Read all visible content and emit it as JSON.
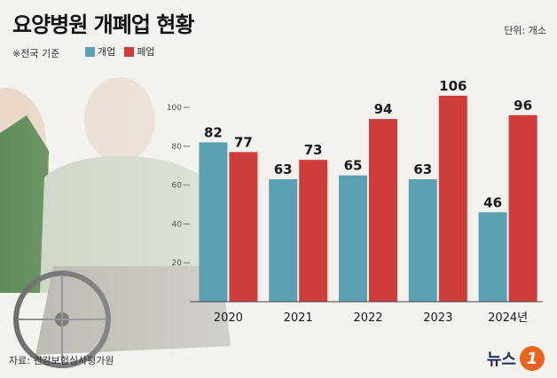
{
  "header": {
    "title": "요양병원 개폐업 현황",
    "unit": "단위: 개소",
    "note": "※전국 기준",
    "source": "자료: 건강보험심사평가원"
  },
  "logo": {
    "text": "뉴스",
    "badge": "1"
  },
  "colors": {
    "open": "#5b9fb3",
    "close": "#cf3c3c",
    "axis": "#555555"
  },
  "chart_data": {
    "type": "bar",
    "title": "요양병원 개폐업 현황",
    "xlabel": "",
    "ylabel": "",
    "ylim": [
      0,
      110
    ],
    "yticks": [
      20,
      40,
      60,
      80,
      100
    ],
    "categories": [
      "2020",
      "2021",
      "2022",
      "2023",
      "2024년"
    ],
    "series": [
      {
        "name": "개업",
        "color": "#5b9fb3",
        "values": [
          82,
          63,
          65,
          63,
          46
        ]
      },
      {
        "name": "폐업",
        "color": "#cf3c3c",
        "values": [
          77,
          73,
          94,
          106,
          96
        ]
      }
    ],
    "grid": false,
    "legend": "top-left"
  }
}
